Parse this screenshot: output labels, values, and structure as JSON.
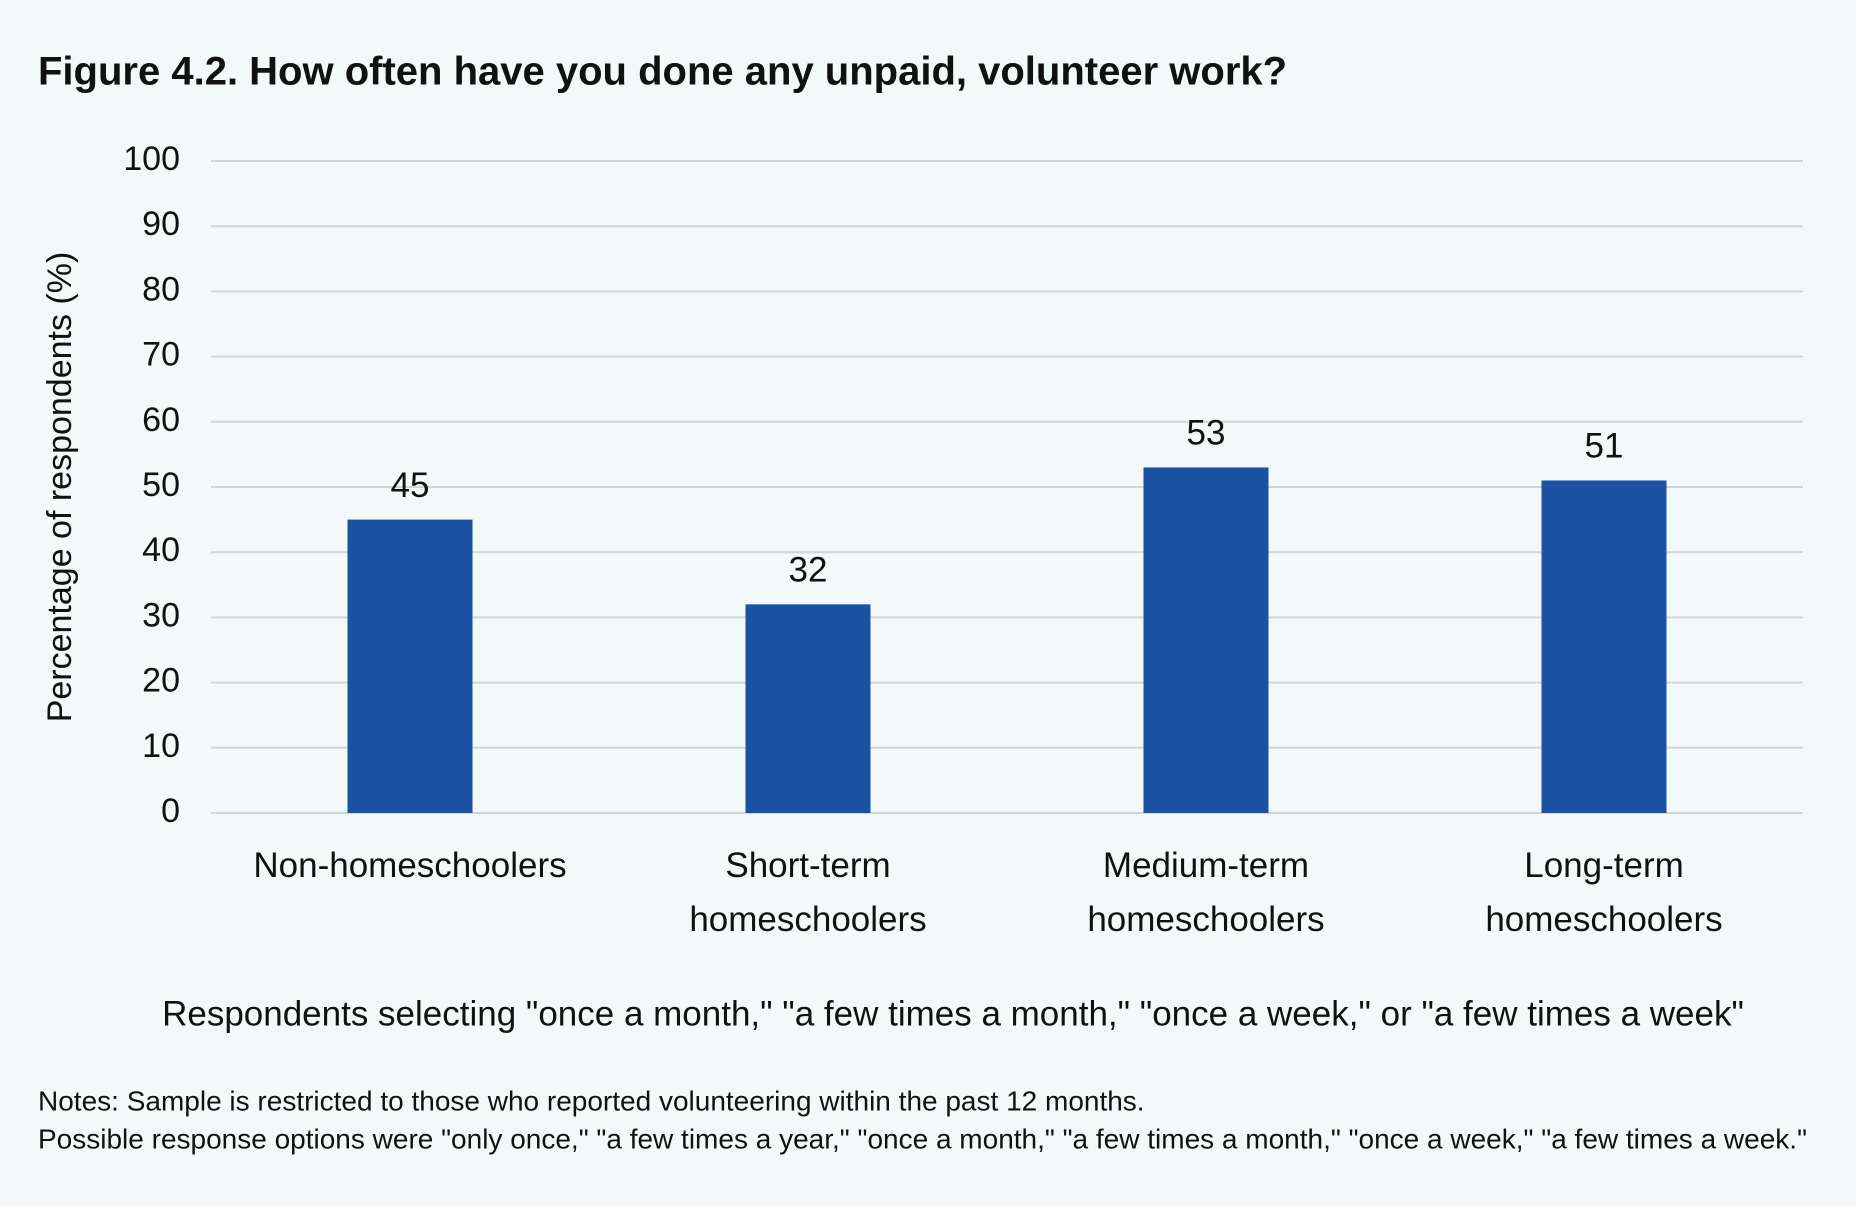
{
  "chart_data": {
    "type": "bar",
    "title": "Figure 4.2. How often have you done any unpaid, volunteer work?",
    "y_label": "Percentage of respondents (%)",
    "x_label": "Respondents selecting \"once a month,\" \"a few times a month,\" \"once a week,\" or \"a few times a week\"",
    "categories": [
      "Non-homeschoolers",
      "Short-term homeschoolers",
      "Medium-term homeschoolers",
      "Long-term homeschoolers"
    ],
    "values": [
      45,
      32,
      53,
      51
    ],
    "color": "#1c52a3",
    "ylim": [
      0,
      100
    ],
    "yticks": [
      0,
      10,
      20,
      30,
      40,
      50,
      60,
      70,
      80,
      90,
      100
    ],
    "grid": true,
    "notes": [
      "Notes: Sample is restricted to those who reported volunteering within the past 12 months.",
      "Possible response options were \"only once,\" \"a few times a year,\" \"once a month,\" \"a few times a month,\" \"once a week,\" \"a few times a week.\""
    ]
  }
}
